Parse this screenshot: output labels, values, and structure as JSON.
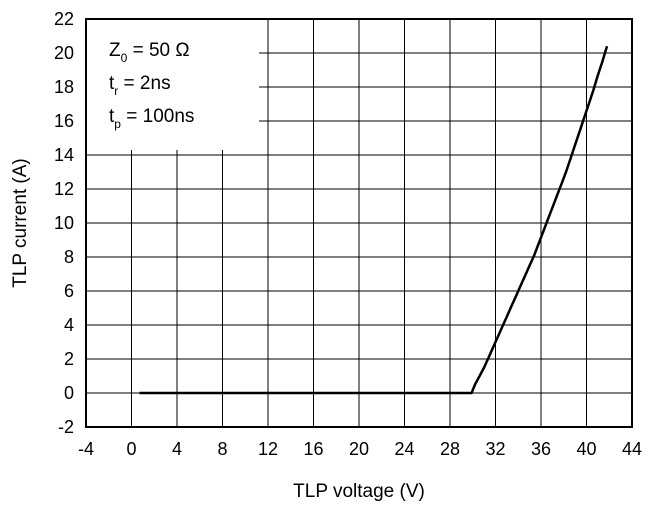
{
  "chart_data": {
    "type": "line",
    "xlabel": "TLP voltage (V)",
    "ylabel": "TLP current (A)",
    "xlim": [
      -4,
      44
    ],
    "ylim": [
      -2,
      22
    ],
    "xticks": [
      -4,
      0,
      4,
      8,
      12,
      16,
      20,
      24,
      28,
      32,
      36,
      40,
      44
    ],
    "yticks": [
      -2,
      0,
      2,
      4,
      6,
      8,
      10,
      12,
      14,
      16,
      18,
      20,
      22
    ],
    "grid": true,
    "legend_placement": "top-left",
    "legend": [
      {
        "base": "Z",
        "sub": "0",
        "rest": " = 50 Ω"
      },
      {
        "base": "t",
        "sub": "r",
        "rest": " = 2ns"
      },
      {
        "base": "t",
        "sub": "p",
        "rest": " = 100ns"
      }
    ],
    "series": [
      {
        "color": "#000000",
        "x": [
          0.7,
          5,
          10,
          15,
          20,
          25,
          29.9,
          30.2,
          30.6,
          31.0,
          31.4,
          31.8,
          32.2,
          32.6,
          33.0,
          33.4,
          33.8,
          34.2,
          34.6,
          35.0,
          35.4,
          35.8,
          36.2,
          36.6,
          37.0,
          37.4,
          37.8,
          38.2,
          38.6,
          39.0,
          39.4,
          39.8,
          40.2,
          40.6,
          41.0,
          41.4,
          41.8
        ],
        "y": [
          0.0,
          0.0,
          0.0,
          0.0,
          0.0,
          0.0,
          0.0,
          0.5,
          1.0,
          1.5,
          2.1,
          2.7,
          3.3,
          3.9,
          4.5,
          5.1,
          5.7,
          6.3,
          6.9,
          7.5,
          8.1,
          8.8,
          9.5,
          10.2,
          10.9,
          11.6,
          12.3,
          13.0,
          13.8,
          14.6,
          15.4,
          16.2,
          17.0,
          17.8,
          18.7,
          19.5,
          20.4
        ]
      }
    ]
  }
}
